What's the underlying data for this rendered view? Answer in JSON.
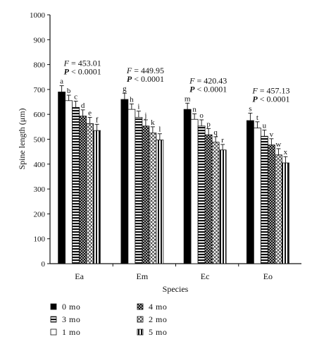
{
  "chart_data": {
    "type": "bar",
    "xlabel": "Species",
    "ylabel": "Spine length (μm)",
    "ylim": [
      0,
      1000
    ],
    "yticks": [
      0,
      100,
      200,
      300,
      400,
      500,
      600,
      700,
      800,
      900,
      1000
    ],
    "grid": false,
    "legend_position": "bottom-left",
    "categories": [
      "Ea",
      "Em",
      "Ec",
      "Eo"
    ],
    "series": [
      {
        "name": "0 mo",
        "values": [
          690,
          660,
          620,
          575
        ],
        "errors": [
          25,
          25,
          25,
          30
        ],
        "letters": [
          "a",
          "g",
          "m",
          "s"
        ],
        "pattern": "solid-black"
      },
      {
        "name": "1 mo",
        "values": [
          655,
          620,
          580,
          545
        ],
        "errors": [
          22,
          22,
          22,
          25
        ],
        "letters": [
          "b",
          "h",
          "n",
          "t"
        ],
        "pattern": "solid-white"
      },
      {
        "name": "3 mo",
        "values": [
          628,
          588,
          553,
          512
        ],
        "errors": [
          25,
          25,
          25,
          25
        ],
        "letters": [
          "c",
          "i",
          "o",
          "u"
        ],
        "pattern": "horizontal-lines"
      },
      {
        "name": "4 mo",
        "values": [
          593,
          553,
          518,
          477
        ],
        "errors": [
          25,
          25,
          25,
          25
        ],
        "letters": [
          "d",
          "j",
          "p",
          "v"
        ],
        "pattern": "crosshatch-dense"
      },
      {
        "name": "2 mo",
        "values": [
          563,
          525,
          488,
          437
        ],
        "errors": [
          25,
          25,
          22,
          25
        ],
        "letters": [
          "e",
          "k",
          "q",
          "w"
        ],
        "pattern": "crosshatch-light"
      },
      {
        "name": "5 mo",
        "values": [
          535,
          497,
          457,
          405
        ],
        "errors": [
          25,
          25,
          22,
          25
        ],
        "letters": [
          "f",
          "l",
          "r",
          "x"
        ],
        "pattern": "vertical-lines"
      }
    ],
    "annotations": [
      {
        "category": "Ea",
        "f_label": "F",
        "f_value": "= 453.01",
        "p_label": "P",
        "p_value": "< 0.0001"
      },
      {
        "category": "Em",
        "f_label": "F",
        "f_value": "= 449.95",
        "p_label": "P",
        "p_value": "< 0.0001"
      },
      {
        "category": "Ec",
        "f_label": "F",
        "f_value": "= 420.43",
        "p_label": "P",
        "p_value": "< 0.0001"
      },
      {
        "category": "Eo",
        "f_label": "F",
        "f_value": "= 457.13",
        "p_label": "P",
        "p_value": "< 0.0001"
      }
    ],
    "legend": [
      {
        "label": "0 mo",
        "pattern": "solid-black"
      },
      {
        "label": "4 mo",
        "pattern": "crosshatch-dense"
      },
      {
        "label": "3 mo",
        "pattern": "horizontal-lines"
      },
      {
        "label": "2 mo",
        "pattern": "crosshatch-light"
      },
      {
        "label": "1 mo",
        "pattern": "solid-white"
      },
      {
        "label": "5 mo",
        "pattern": "vertical-lines"
      }
    ]
  }
}
